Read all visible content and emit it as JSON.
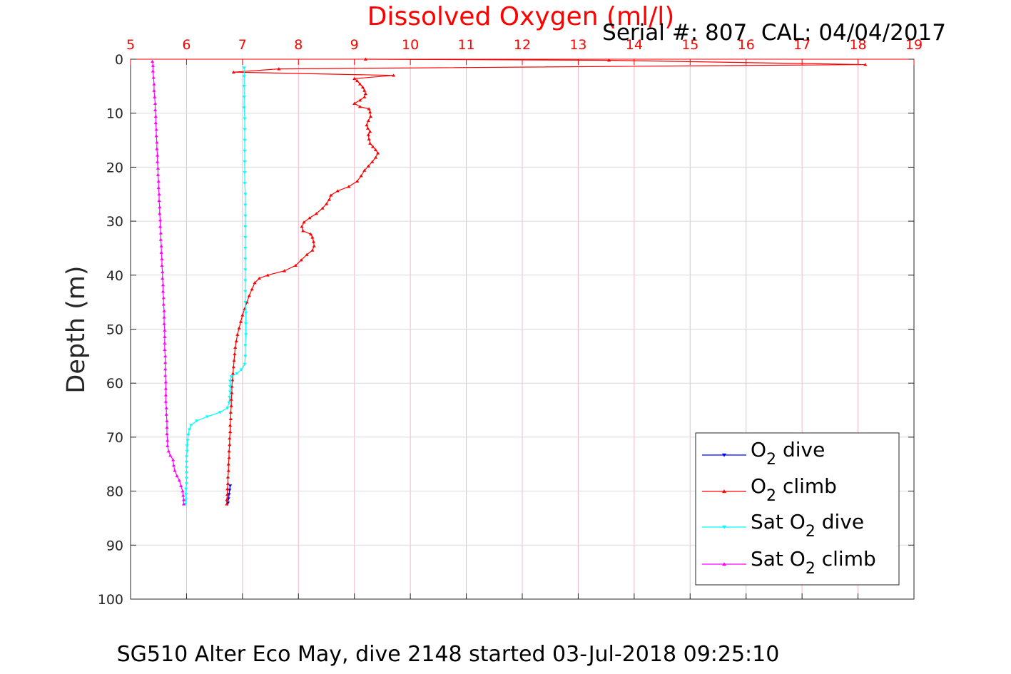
{
  "chart_data": {
    "type": "line",
    "title": "Dissolved Oxygen (ml/l)",
    "subtitle": "Serial #: 807  CAL: 04/04/2017",
    "caption": "SG510 Alter Eco May, dive 2148 started 03-Jul-2018 09:25:10",
    "xlabel": "",
    "ylabel": "Depth (m)",
    "xlim": [
      5,
      19
    ],
    "ylim": [
      0,
      100
    ],
    "y_reversed": true,
    "x_axis_position": "top",
    "xticks": [
      5,
      6,
      7,
      8,
      9,
      10,
      11,
      12,
      13,
      14,
      15,
      16,
      17,
      18,
      19
    ],
    "yticks": [
      0,
      10,
      20,
      30,
      40,
      50,
      60,
      70,
      80,
      90,
      100
    ],
    "grid": true,
    "legend_position": "bottom-right",
    "colors": {
      "axis_top": "#ff0000",
      "axis_left": "#262626",
      "grid_x": "#f4b8c8",
      "grid_y": "#d9d9d9"
    },
    "series": [
      {
        "name": "O_2 dive",
        "legend_main": "O",
        "legend_sub": "2",
        "legend_rest": " dive",
        "color": "#0000ff",
        "marker": "down-triangle",
        "points": [
          [
            6.78,
            79.0
          ],
          [
            6.77,
            79.8
          ],
          [
            6.76,
            80.6
          ],
          [
            6.75,
            81.4
          ],
          [
            6.74,
            82.2
          ]
        ]
      },
      {
        "name": "O_2 climb",
        "legend_main": "O",
        "legend_sub": "2",
        "legend_rest": " climb",
        "color": "#ff0000",
        "marker": "up-triangle",
        "points": [
          [
            6.72,
            82.4
          ],
          [
            6.72,
            81.6
          ],
          [
            6.73,
            80.6
          ],
          [
            6.73,
            79.6
          ],
          [
            6.74,
            78.6
          ],
          [
            6.74,
            77.4
          ],
          [
            6.75,
            76.2
          ],
          [
            6.75,
            75.0
          ],
          [
            6.76,
            73.8
          ],
          [
            6.76,
            72.6
          ],
          [
            6.77,
            71.4
          ],
          [
            6.77,
            70.2
          ],
          [
            6.78,
            69.0
          ],
          [
            6.78,
            67.8
          ],
          [
            6.79,
            66.6
          ],
          [
            6.79,
            65.4
          ],
          [
            6.8,
            64.2
          ],
          [
            6.8,
            63.0
          ],
          [
            6.81,
            61.8
          ],
          [
            6.81,
            60.6
          ],
          [
            6.82,
            59.4
          ],
          [
            6.83,
            58.2
          ],
          [
            6.84,
            57.0
          ],
          [
            6.85,
            55.8
          ],
          [
            6.86,
            54.6
          ],
          [
            6.87,
            53.4
          ],
          [
            6.89,
            52.2
          ],
          [
            6.91,
            51.0
          ],
          [
            6.94,
            49.8
          ],
          [
            6.97,
            48.6
          ],
          [
            7.0,
            47.4
          ],
          [
            7.04,
            46.2
          ],
          [
            7.08,
            45.0
          ],
          [
            7.12,
            43.8
          ],
          [
            7.17,
            42.6
          ],
          [
            7.22,
            41.4
          ],
          [
            7.3,
            40.6
          ],
          [
            7.45,
            40.0
          ],
          [
            7.75,
            39.2
          ],
          [
            7.95,
            38.2
          ],
          [
            8.05,
            37.2
          ],
          [
            8.15,
            36.2
          ],
          [
            8.25,
            35.4
          ],
          [
            8.28,
            34.6
          ],
          [
            8.27,
            33.8
          ],
          [
            8.25,
            33.0
          ],
          [
            8.22,
            32.4
          ],
          [
            8.08,
            31.8
          ],
          [
            8.06,
            31.0
          ],
          [
            8.1,
            30.2
          ],
          [
            8.2,
            29.4
          ],
          [
            8.32,
            28.6
          ],
          [
            8.43,
            27.6
          ],
          [
            8.5,
            26.8
          ],
          [
            8.55,
            26.0
          ],
          [
            8.58,
            25.2
          ],
          [
            8.7,
            24.4
          ],
          [
            8.9,
            23.6
          ],
          [
            9.05,
            22.6
          ],
          [
            9.12,
            21.6
          ],
          [
            9.18,
            20.6
          ],
          [
            9.25,
            19.8
          ],
          [
            9.32,
            19.0
          ],
          [
            9.38,
            18.2
          ],
          [
            9.42,
            17.4
          ],
          [
            9.38,
            16.8
          ],
          [
            9.33,
            16.2
          ],
          [
            9.28,
            15.6
          ],
          [
            9.26,
            14.8
          ],
          [
            9.25,
            14.0
          ],
          [
            9.28,
            13.4
          ],
          [
            9.24,
            12.8
          ],
          [
            9.22,
            12.2
          ],
          [
            9.25,
            11.4
          ],
          [
            9.29,
            10.6
          ],
          [
            9.28,
            9.8
          ],
          [
            9.26,
            9.2
          ],
          [
            9.1,
            8.8
          ],
          [
            9.0,
            8.2
          ],
          [
            9.1,
            7.6
          ],
          [
            9.18,
            7.0
          ],
          [
            9.2,
            6.4
          ],
          [
            9.18,
            5.8
          ],
          [
            9.15,
            5.2
          ],
          [
            9.1,
            4.6
          ],
          [
            9.05,
            4.0
          ],
          [
            9.0,
            3.6
          ],
          [
            9.7,
            3.0
          ],
          [
            6.84,
            2.4
          ],
          [
            7.65,
            1.8
          ],
          [
            18.13,
            1.0
          ],
          [
            13.55,
            0.2
          ],
          [
            9.2,
            0.0
          ]
        ]
      },
      {
        "name": "Sat O_2 dive",
        "legend_main": "Sat O",
        "legend_sub": "2",
        "legend_rest": " dive",
        "color": "#00ffff",
        "marker": "down-triangle",
        "points": [
          [
            7.03,
            1.6
          ],
          [
            7.03,
            3.2
          ],
          [
            7.03,
            5.0
          ],
          [
            7.03,
            7.0
          ],
          [
            7.03,
            9.0
          ],
          [
            7.04,
            11.0
          ],
          [
            7.04,
            13.0
          ],
          [
            7.04,
            15.0
          ],
          [
            7.04,
            17.0
          ],
          [
            7.04,
            19.0
          ],
          [
            7.04,
            21.0
          ],
          [
            7.04,
            23.0
          ],
          [
            7.05,
            25.0
          ],
          [
            7.05,
            27.0
          ],
          [
            7.05,
            29.0
          ],
          [
            7.05,
            31.0
          ],
          [
            7.05,
            33.0
          ],
          [
            7.05,
            35.0
          ],
          [
            7.05,
            37.0
          ],
          [
            7.05,
            39.0
          ],
          [
            7.05,
            41.0
          ],
          [
            7.05,
            43.0
          ],
          [
            7.05,
            45.0
          ],
          [
            7.06,
            47.0
          ],
          [
            7.06,
            49.0
          ],
          [
            7.06,
            51.0
          ],
          [
            7.05,
            53.0
          ],
          [
            7.05,
            55.0
          ],
          [
            7.04,
            56.5
          ],
          [
            6.98,
            57.5
          ],
          [
            6.9,
            58.2
          ],
          [
            6.8,
            58.8
          ],
          [
            6.78,
            59.6
          ],
          [
            6.78,
            60.6
          ],
          [
            6.78,
            61.6
          ],
          [
            6.77,
            62.6
          ],
          [
            6.76,
            63.6
          ],
          [
            6.73,
            64.6
          ],
          [
            6.6,
            65.4
          ],
          [
            6.37,
            66.2
          ],
          [
            6.18,
            67.0
          ],
          [
            6.08,
            67.8
          ],
          [
            6.05,
            68.6
          ],
          [
            6.03,
            69.6
          ],
          [
            6.02,
            70.6
          ],
          [
            6.01,
            71.6
          ],
          [
            6.01,
            72.6
          ],
          [
            6.0,
            73.6
          ],
          [
            6.0,
            74.6
          ],
          [
            6.0,
            75.6
          ],
          [
            6.0,
            76.6
          ],
          [
            6.0,
            77.6
          ],
          [
            6.0,
            78.6
          ],
          [
            5.99,
            79.6
          ],
          [
            5.99,
            80.6
          ],
          [
            5.99,
            81.6
          ],
          [
            5.98,
            82.4
          ]
        ]
      },
      {
        "name": "Sat O_2 climb",
        "legend_main": "Sat O",
        "legend_sub": "2",
        "legend_rest": " climb",
        "color": "#ff00ff",
        "marker": "up-triangle",
        "points": [
          [
            5.95,
            82.4
          ],
          [
            5.95,
            81.6
          ],
          [
            5.94,
            80.8
          ],
          [
            5.93,
            80.0
          ],
          [
            5.9,
            79.0
          ],
          [
            5.87,
            78.0
          ],
          [
            5.83,
            77.2
          ],
          [
            5.79,
            76.2
          ],
          [
            5.77,
            75.2
          ],
          [
            5.76,
            74.2
          ],
          [
            5.71,
            73.4
          ],
          [
            5.68,
            72.6
          ],
          [
            5.66,
            71.6
          ],
          [
            5.66,
            70.6
          ],
          [
            5.65,
            69.4
          ],
          [
            5.65,
            68.2
          ],
          [
            5.65,
            67.0
          ],
          [
            5.64,
            65.8
          ],
          [
            5.64,
            64.6
          ],
          [
            5.63,
            63.4
          ],
          [
            5.63,
            62.2
          ],
          [
            5.63,
            61.0
          ],
          [
            5.63,
            59.8
          ],
          [
            5.62,
            58.6
          ],
          [
            5.62,
            57.4
          ],
          [
            5.62,
            56.2
          ],
          [
            5.62,
            55.0
          ],
          [
            5.61,
            53.8
          ],
          [
            5.61,
            52.6
          ],
          [
            5.61,
            51.4
          ],
          [
            5.61,
            50.2
          ],
          [
            5.6,
            49.0
          ],
          [
            5.6,
            47.8
          ],
          [
            5.6,
            46.6
          ],
          [
            5.59,
            45.4
          ],
          [
            5.59,
            44.2
          ],
          [
            5.58,
            43.0
          ],
          [
            5.58,
            41.8
          ],
          [
            5.57,
            40.6
          ],
          [
            5.57,
            39.4
          ],
          [
            5.56,
            38.2
          ],
          [
            5.56,
            37.0
          ],
          [
            5.55,
            35.8
          ],
          [
            5.55,
            34.6
          ],
          [
            5.54,
            33.4
          ],
          [
            5.54,
            32.2
          ],
          [
            5.53,
            31.0
          ],
          [
            5.53,
            29.8
          ],
          [
            5.52,
            28.6
          ],
          [
            5.52,
            27.4
          ],
          [
            5.51,
            26.2
          ],
          [
            5.51,
            25.0
          ],
          [
            5.5,
            23.8
          ],
          [
            5.5,
            22.6
          ],
          [
            5.49,
            21.4
          ],
          [
            5.49,
            20.2
          ],
          [
            5.48,
            19.0
          ],
          [
            5.48,
            17.8
          ],
          [
            5.47,
            16.6
          ],
          [
            5.47,
            15.4
          ],
          [
            5.46,
            14.2
          ],
          [
            5.46,
            13.0
          ],
          [
            5.45,
            11.8
          ],
          [
            5.45,
            10.6
          ],
          [
            5.44,
            9.4
          ],
          [
            5.44,
            8.2
          ],
          [
            5.43,
            7.0
          ],
          [
            5.42,
            5.8
          ],
          [
            5.42,
            4.6
          ],
          [
            5.41,
            3.4
          ],
          [
            5.4,
            2.2
          ],
          [
            5.4,
            1.2
          ],
          [
            5.39,
            0.4
          ]
        ]
      }
    ]
  }
}
